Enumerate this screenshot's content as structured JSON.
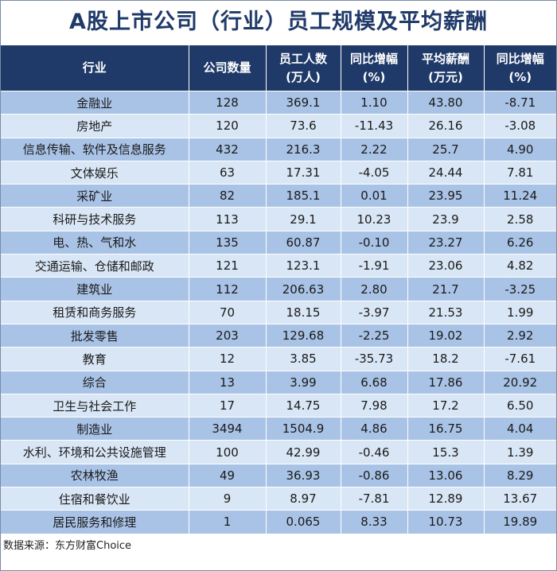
{
  "title": "A股上市公司（行业）员工规模及平均薪酬",
  "headers": [
    {
      "line1": "行业",
      "line2": ""
    },
    {
      "line1": "公司数量",
      "line2": ""
    },
    {
      "line1": "员工人数",
      "line2": "(万人)"
    },
    {
      "line1": "同比增幅",
      "line2": "(%)"
    },
    {
      "line1": "平均薪酬",
      "line2": "(万元)"
    },
    {
      "line1": "同比增幅",
      "line2": "(%)"
    }
  ],
  "rows": [
    [
      "金融业",
      "128",
      "369.1",
      "1.10",
      "43.80",
      "-8.71"
    ],
    [
      "房地产",
      "120",
      "73.6",
      "-11.43",
      "26.16",
      "-3.08"
    ],
    [
      "信息传输、软件及信息服务",
      "432",
      "216.3",
      "2.22",
      "25.7",
      "4.90"
    ],
    [
      "文体娱乐",
      "63",
      "17.31",
      "-4.05",
      "24.44",
      "7.81"
    ],
    [
      "采矿业",
      "82",
      "185.1",
      "0.01",
      "23.95",
      "11.24"
    ],
    [
      "科研与技术服务",
      "113",
      "29.1",
      "10.23",
      "23.9",
      "2.58"
    ],
    [
      "电、热、气和水",
      "135",
      "60.87",
      "-0.10",
      "23.27",
      "6.26"
    ],
    [
      "交通运输、仓储和邮政",
      "121",
      "123.1",
      "-1.91",
      "23.06",
      "4.82"
    ],
    [
      "建筑业",
      "112",
      "206.63",
      "2.80",
      "21.7",
      "-3.25"
    ],
    [
      "租赁和商务服务",
      "70",
      "18.15",
      "-3.97",
      "21.53",
      "1.99"
    ],
    [
      "批发零售",
      "203",
      "129.68",
      "-2.25",
      "19.02",
      "2.92"
    ],
    [
      "教育",
      "12",
      "3.85",
      "-35.73",
      "18.2",
      "-7.61"
    ],
    [
      "综合",
      "13",
      "3.99",
      "6.68",
      "17.86",
      "20.92"
    ],
    [
      "卫生与社会工作",
      "17",
      "14.75",
      "7.98",
      "17.2",
      "6.50"
    ],
    [
      "制造业",
      "3494",
      "1504.9",
      "4.86",
      "16.75",
      "4.04"
    ],
    [
      "水利、环境和公共设施管理",
      "100",
      "42.99",
      "-0.46",
      "15.3",
      "1.39"
    ],
    [
      "农林牧渔",
      "49",
      "36.93",
      "-0.86",
      "13.06",
      "8.29"
    ],
    [
      "住宿和餐饮业",
      "9",
      "8.97",
      "-7.81",
      "12.89",
      "13.67"
    ],
    [
      "居民服务和修理",
      "1",
      "0.065",
      "8.33",
      "10.73",
      "19.89"
    ]
  ],
  "source": "数据来源：东方财富Choice",
  "colors": {
    "header_bg": "#1f3a68",
    "row_dark": "#a9c3e6",
    "row_light": "#d9e6f5",
    "title": "#1f3a68"
  }
}
